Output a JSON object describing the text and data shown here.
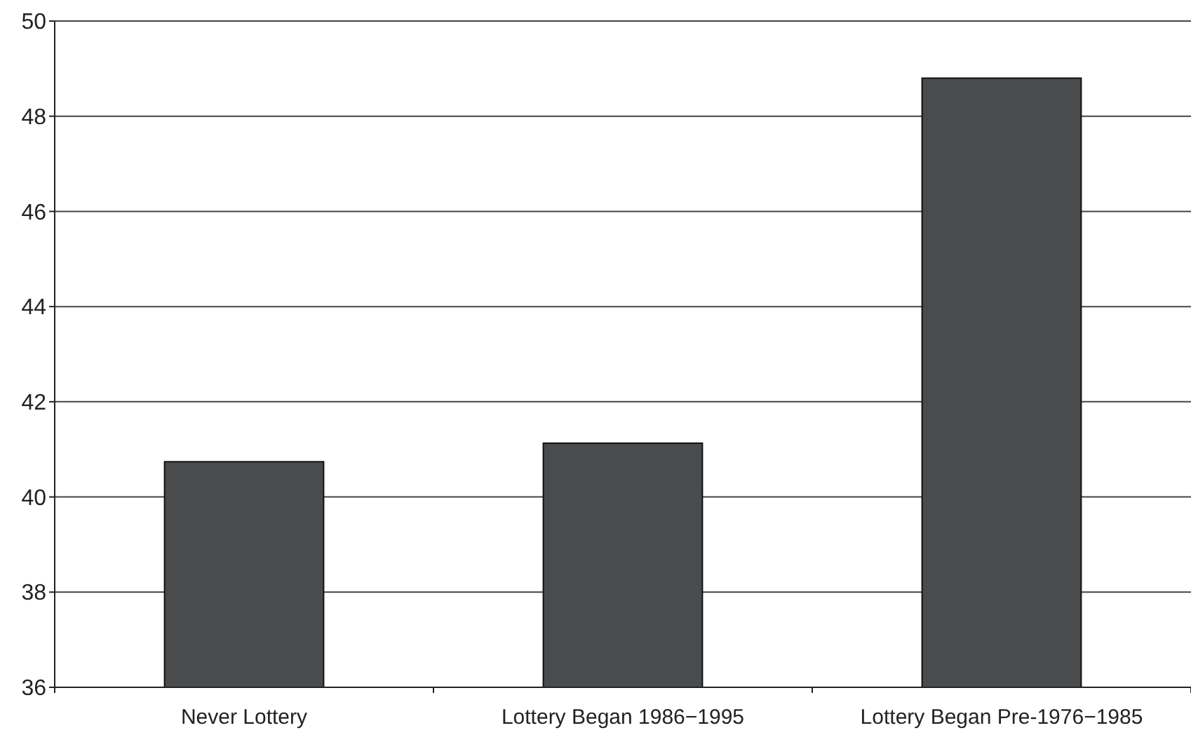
{
  "chart_data": {
    "type": "bar",
    "categories": [
      "Never Lottery",
      "Lottery Began 1986−1995",
      "Lottery Began Pre-1976−1985"
    ],
    "values": [
      40.74,
      41.13,
      48.8
    ],
    "color": "#4a4b4d",
    "ylim": [
      36,
      50
    ],
    "yticks": [
      36,
      38,
      40,
      42,
      44,
      46,
      48,
      50
    ],
    "grid": "y"
  }
}
